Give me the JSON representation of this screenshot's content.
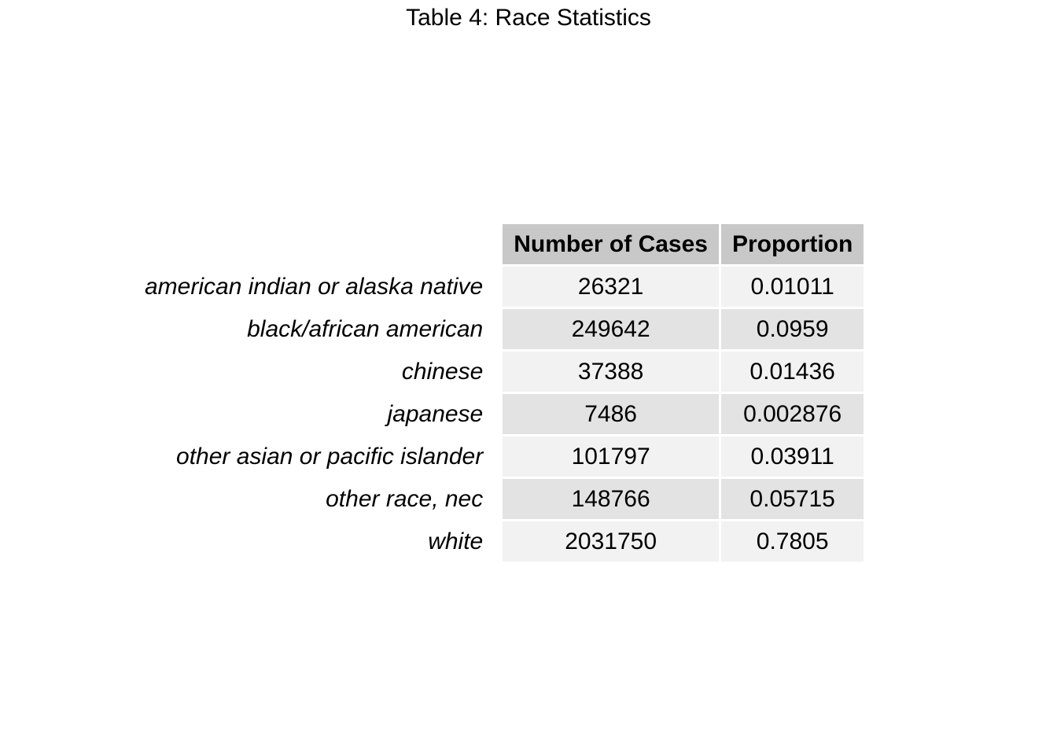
{
  "title": "Table 4: Race Statistics",
  "chart_data": {
    "type": "table",
    "title": "Table 4: Race Statistics",
    "columns": [
      "Number of Cases",
      "Proportion"
    ],
    "rows": [
      {
        "label": "american indian or alaska native",
        "values": [
          "26321",
          "0.01011"
        ]
      },
      {
        "label": "black/african american",
        "values": [
          "249642",
          "0.0959"
        ]
      },
      {
        "label": "chinese",
        "values": [
          "37388",
          "0.01436"
        ]
      },
      {
        "label": "japanese",
        "values": [
          "7486",
          "0.002876"
        ]
      },
      {
        "label": "other asian or pacific islander",
        "values": [
          "101797",
          "0.03911"
        ]
      },
      {
        "label": "other race, nec",
        "values": [
          "148766",
          "0.05715"
        ]
      },
      {
        "label": "white",
        "values": [
          "2031750",
          "0.7805"
        ]
      }
    ]
  },
  "colors": {
    "header_bg": "#c8c8c8",
    "row_light": "#f2f2f2",
    "row_dark": "#e3e3e3"
  }
}
